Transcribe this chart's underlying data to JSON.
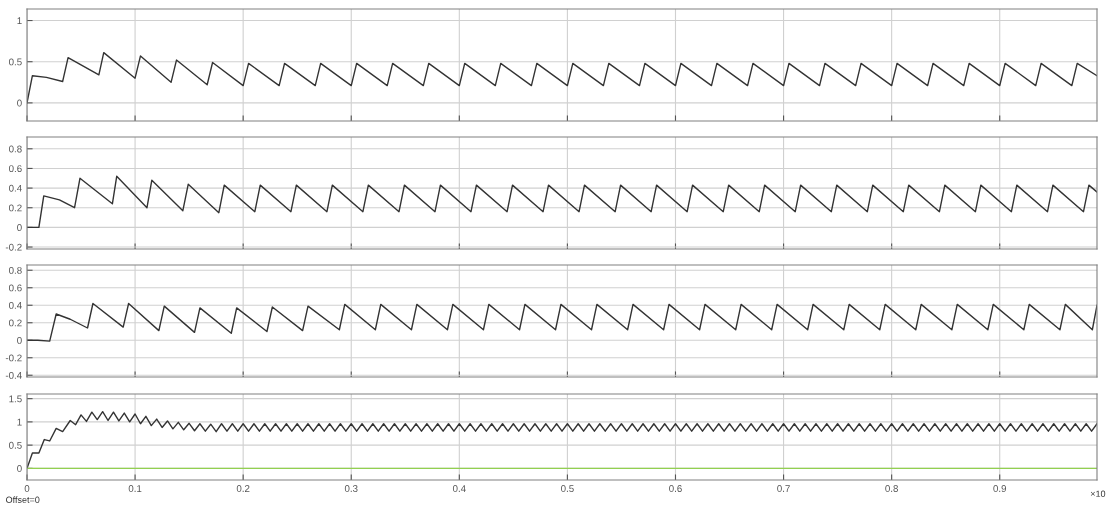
{
  "chart_data": [
    {
      "type": "line",
      "xlim": [
        0,
        0.99
      ],
      "ylim": [
        -0.22,
        1.14
      ],
      "xticks": [
        0,
        0.1,
        0.2,
        0.3,
        0.4,
        0.5,
        0.6,
        0.7,
        0.8,
        0.9
      ],
      "yticks": [
        0,
        0.5,
        1
      ],
      "grid": true,
      "tick_labels": "y",
      "series": [
        {
          "color": "#333333",
          "x": [
            0,
            0.005,
            0.018,
            0.033,
            0.038,
            0.0665,
            0.071,
            0.1,
            0.105,
            0.1333,
            0.1383,
            0.1667,
            0.1717,
            0.2,
            0.205,
            0.2333,
            0.2383,
            0.2667,
            0.2717,
            0.3,
            0.305,
            0.3333,
            0.3383,
            0.3667,
            0.3717,
            0.4,
            0.405,
            0.4333,
            0.4383,
            0.4667,
            0.4717,
            0.5,
            0.505,
            0.5333,
            0.5383,
            0.5667,
            0.5717,
            0.6,
            0.605,
            0.6333,
            0.6383,
            0.6667,
            0.6717,
            0.7,
            0.705,
            0.7333,
            0.7383,
            0.7667,
            0.7717,
            0.8,
            0.805,
            0.8333,
            0.8383,
            0.8667,
            0.8717,
            0.9,
            0.905,
            0.9333,
            0.9383,
            0.9667,
            0.9717,
            0.99
          ],
          "values": [
            0,
            0.33,
            0.31,
            0.26,
            0.55,
            0.34,
            0.61,
            0.3,
            0.57,
            0.25,
            0.52,
            0.22,
            0.49,
            0.21,
            0.48,
            0.21,
            0.48,
            0.21,
            0.48,
            0.21,
            0.48,
            0.21,
            0.48,
            0.21,
            0.48,
            0.21,
            0.48,
            0.21,
            0.48,
            0.21,
            0.48,
            0.21,
            0.48,
            0.21,
            0.48,
            0.21,
            0.48,
            0.21,
            0.48,
            0.21,
            0.48,
            0.21,
            0.48,
            0.21,
            0.48,
            0.21,
            0.48,
            0.21,
            0.48,
            0.21,
            0.48,
            0.21,
            0.48,
            0.21,
            0.48,
            0.21,
            0.48,
            0.21,
            0.48,
            0.21,
            0.48,
            0.33
          ]
        }
      ]
    },
    {
      "type": "line",
      "xlim": [
        0,
        0.99
      ],
      "ylim": [
        -0.22,
        0.92
      ],
      "xticks": [
        0,
        0.1,
        0.2,
        0.3,
        0.4,
        0.5,
        0.6,
        0.7,
        0.8,
        0.9
      ],
      "yticks": [
        -0.2,
        0,
        0.2,
        0.4,
        0.6,
        0.8
      ],
      "grid": true,
      "tick_labels": "y",
      "series": [
        {
          "color": "#333333",
          "x": [
            0,
            0.011,
            0.0155,
            0.03,
            0.044,
            0.049,
            0.079,
            0.083,
            0.111,
            0.1155,
            0.1442,
            0.1492,
            0.1775,
            0.1825,
            0.2108,
            0.2158,
            0.2442,
            0.2492,
            0.2775,
            0.2825,
            0.3108,
            0.3158,
            0.3442,
            0.3492,
            0.3775,
            0.3825,
            0.4108,
            0.4158,
            0.4442,
            0.4492,
            0.4775,
            0.4825,
            0.5108,
            0.5158,
            0.5442,
            0.5492,
            0.5775,
            0.5825,
            0.6108,
            0.6158,
            0.6442,
            0.6492,
            0.6775,
            0.6825,
            0.7108,
            0.7158,
            0.7442,
            0.7492,
            0.7775,
            0.7825,
            0.8108,
            0.8158,
            0.8442,
            0.8492,
            0.8775,
            0.8825,
            0.9108,
            0.9158,
            0.9442,
            0.9492,
            0.9775,
            0.9825,
            0.99
          ],
          "values": [
            0,
            0,
            0.32,
            0.28,
            0.2,
            0.5,
            0.24,
            0.52,
            0.2,
            0.48,
            0.17,
            0.44,
            0.15,
            0.43,
            0.16,
            0.43,
            0.16,
            0.43,
            0.16,
            0.43,
            0.16,
            0.43,
            0.16,
            0.43,
            0.16,
            0.43,
            0.16,
            0.43,
            0.16,
            0.43,
            0.16,
            0.43,
            0.16,
            0.43,
            0.16,
            0.43,
            0.16,
            0.43,
            0.16,
            0.43,
            0.16,
            0.43,
            0.16,
            0.43,
            0.16,
            0.43,
            0.16,
            0.43,
            0.16,
            0.43,
            0.16,
            0.43,
            0.16,
            0.43,
            0.16,
            0.43,
            0.16,
            0.43,
            0.16,
            0.43,
            0.16,
            0.43,
            0.36
          ]
        }
      ]
    },
    {
      "type": "line",
      "xlim": [
        0,
        0.99
      ],
      "ylim": [
        -0.42,
        0.86
      ],
      "xticks": [
        0,
        0.1,
        0.2,
        0.3,
        0.4,
        0.5,
        0.6,
        0.7,
        0.8,
        0.9
      ],
      "yticks": [
        -0.4,
        -0.2,
        0,
        0.2,
        0.4,
        0.6,
        0.8
      ],
      "grid": true,
      "tick_labels": "y",
      "series": [
        {
          "color": "#333333",
          "x": [
            0,
            0.01,
            0.021,
            0.027,
            0.04,
            0.056,
            0.061,
            0.089,
            0.094,
            0.122,
            0.127,
            0.155,
            0.16,
            0.189,
            0.194,
            0.222,
            0.227,
            0.255,
            0.26,
            0.289,
            0.294,
            0.3223,
            0.3273,
            0.3557,
            0.3607,
            0.389,
            0.394,
            0.4223,
            0.4273,
            0.4557,
            0.4607,
            0.489,
            0.494,
            0.5223,
            0.5273,
            0.5557,
            0.5607,
            0.589,
            0.594,
            0.6223,
            0.6273,
            0.6557,
            0.6607,
            0.689,
            0.694,
            0.7223,
            0.7273,
            0.7557,
            0.7607,
            0.789,
            0.794,
            0.8223,
            0.8273,
            0.8557,
            0.8607,
            0.889,
            0.894,
            0.9223,
            0.9273,
            0.9557,
            0.9607,
            0.9857,
            0.99
          ],
          "values": [
            0,
            0,
            -0.01,
            0.3,
            0.24,
            0.14,
            0.42,
            0.15,
            0.42,
            0.11,
            0.39,
            0.09,
            0.37,
            0.08,
            0.37,
            0.1,
            0.38,
            0.11,
            0.39,
            0.12,
            0.41,
            0.12,
            0.41,
            0.12,
            0.41,
            0.12,
            0.41,
            0.12,
            0.41,
            0.12,
            0.41,
            0.12,
            0.41,
            0.12,
            0.41,
            0.12,
            0.41,
            0.12,
            0.41,
            0.12,
            0.41,
            0.12,
            0.41,
            0.12,
            0.41,
            0.12,
            0.41,
            0.12,
            0.41,
            0.12,
            0.41,
            0.12,
            0.41,
            0.12,
            0.41,
            0.12,
            0.41,
            0.12,
            0.41,
            0.12,
            0.41,
            0.12,
            0.4
          ]
        }
      ]
    },
    {
      "type": "line",
      "xlim": [
        0,
        0.99
      ],
      "ylim": [
        -0.25,
        1.6
      ],
      "xticks": [
        0,
        0.1,
        0.2,
        0.3,
        0.4,
        0.5,
        0.6,
        0.7,
        0.8,
        0.9
      ],
      "yticks": [
        0,
        0.5,
        1,
        1.5
      ],
      "grid": true,
      "annotations": [
        "Offset=0",
        "×10"
      ],
      "series": [
        {
          "color": "#333333",
          "x": [
            0,
            0.005,
            0.011,
            0.016,
            0.021,
            0.027,
            0.033,
            0.04,
            0.045,
            0.05,
            0.055,
            0.06,
            0.065,
            0.07,
            0.075,
            0.08,
            0.085,
            0.09,
            0.095,
            0.1,
            0.105,
            0.11,
            0.115,
            0.12,
            0.125,
            0.13,
            0.135,
            0.14,
            0.145,
            0.15,
            0.155,
            0.16,
            0.165,
            0.17,
            0.175,
            0.18,
            0.185,
            0.19,
            0.195,
            0.2,
            0.205,
            0.21,
            0.215,
            0.22,
            0.225,
            0.23,
            0.235,
            0.24,
            0.245,
            0.25,
            0.255,
            0.26,
            0.265,
            0.27,
            0.275,
            0.28,
            0.285,
            0.29,
            0.295,
            0.3,
            0.305,
            0.31,
            0.315,
            0.32,
            0.325,
            0.33,
            0.335,
            0.34,
            0.345,
            0.35,
            0.355,
            0.36,
            0.365,
            0.37,
            0.375,
            0.38,
            0.385,
            0.39,
            0.395,
            0.4,
            0.405,
            0.41,
            0.415,
            0.42,
            0.425,
            0.43,
            0.435,
            0.44,
            0.445,
            0.45,
            0.455,
            0.46,
            0.465,
            0.47,
            0.475,
            0.48,
            0.485,
            0.49,
            0.495,
            0.5,
            0.505,
            0.51,
            0.515,
            0.52,
            0.525,
            0.53,
            0.535,
            0.54,
            0.545,
            0.55,
            0.555,
            0.56,
            0.565,
            0.57,
            0.575,
            0.58,
            0.585,
            0.59,
            0.595,
            0.6,
            0.605,
            0.61,
            0.615,
            0.62,
            0.625,
            0.63,
            0.635,
            0.64,
            0.645,
            0.65,
            0.655,
            0.66,
            0.665,
            0.67,
            0.675,
            0.68,
            0.685,
            0.69,
            0.695,
            0.7,
            0.705,
            0.71,
            0.715,
            0.72,
            0.725,
            0.73,
            0.735,
            0.74,
            0.745,
            0.75,
            0.755,
            0.76,
            0.765,
            0.77,
            0.775,
            0.78,
            0.785,
            0.79,
            0.795,
            0.8,
            0.805,
            0.81,
            0.815,
            0.82,
            0.825,
            0.83,
            0.835,
            0.84,
            0.845,
            0.85,
            0.855,
            0.86,
            0.865,
            0.87,
            0.875,
            0.88,
            0.885,
            0.89,
            0.895,
            0.9,
            0.905,
            0.91,
            0.915,
            0.92,
            0.925,
            0.93,
            0.935,
            0.94,
            0.945,
            0.95,
            0.955,
            0.96,
            0.965,
            0.97,
            0.975,
            0.98,
            0.985,
            0.99
          ],
          "values": [
            0,
            0.33,
            0.33,
            0.62,
            0.59,
            0.86,
            0.79,
            1.03,
            0.94,
            1.15,
            1.01,
            1.21,
            1.05,
            1.22,
            1.03,
            1.21,
            1.02,
            1.19,
            1.0,
            1.17,
            0.96,
            1.12,
            0.92,
            1.06,
            0.88,
            1.02,
            0.85,
            0.99,
            0.83,
            0.97,
            0.81,
            0.96,
            0.8,
            0.95,
            0.79,
            0.96,
            0.8,
            0.96,
            0.8,
            0.96,
            0.8,
            0.96,
            0.8,
            0.96,
            0.8,
            0.96,
            0.8,
            0.96,
            0.8,
            0.96,
            0.8,
            0.96,
            0.8,
            0.96,
            0.8,
            0.96,
            0.8,
            0.96,
            0.8,
            0.96,
            0.8,
            0.96,
            0.8,
            0.96,
            0.8,
            0.96,
            0.8,
            0.96,
            0.8,
            0.96,
            0.8,
            0.96,
            0.8,
            0.96,
            0.8,
            0.96,
            0.8,
            0.96,
            0.8,
            0.96,
            0.8,
            0.96,
            0.8,
            0.96,
            0.8,
            0.96,
            0.8,
            0.96,
            0.8,
            0.96,
            0.8,
            0.96,
            0.8,
            0.96,
            0.8,
            0.96,
            0.8,
            0.96,
            0.8,
            0.96,
            0.8,
            0.96,
            0.8,
            0.96,
            0.8,
            0.96,
            0.8,
            0.96,
            0.8,
            0.96,
            0.8,
            0.96,
            0.8,
            0.96,
            0.8,
            0.96,
            0.8,
            0.96,
            0.8,
            0.96,
            0.8,
            0.96,
            0.8,
            0.96,
            0.8,
            0.96,
            0.8,
            0.96,
            0.8,
            0.96,
            0.8,
            0.96,
            0.8,
            0.96,
            0.8,
            0.96,
            0.8,
            0.96,
            0.8,
            0.96,
            0.8,
            0.96,
            0.8,
            0.96,
            0.8,
            0.96,
            0.8,
            0.96,
            0.8,
            0.96,
            0.8,
            0.96,
            0.8,
            0.96,
            0.8,
            0.96,
            0.8,
            0.96,
            0.8,
            0.96,
            0.8,
            0.96,
            0.8,
            0.96,
            0.8,
            0.96,
            0.8,
            0.96,
            0.8,
            0.96,
            0.8,
            0.96,
            0.8,
            0.96,
            0.8,
            0.96,
            0.8,
            0.96,
            0.8,
            0.96,
            0.8,
            0.96,
            0.8,
            0.96,
            0.8,
            0.96,
            0.8,
            0.96,
            0.8,
            0.96,
            0.8,
            0.96,
            0.8,
            0.96,
            0.8,
            0.96,
            0.8,
            0.96
          ]
        },
        {
          "color": "#92d050",
          "x": [
            0,
            0.99
          ],
          "values": [
            0,
            0
          ]
        }
      ]
    }
  ]
}
